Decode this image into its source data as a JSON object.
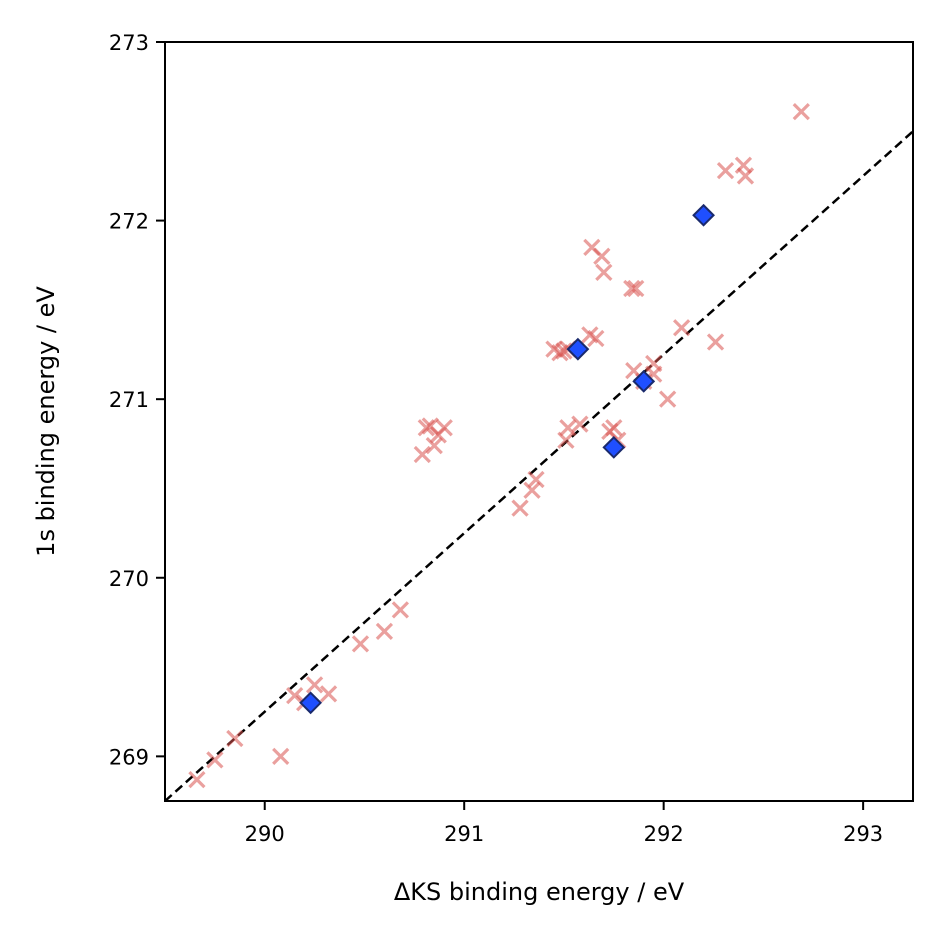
{
  "chart_data": {
    "type": "scatter",
    "xlabel": "ΔKS binding energy / eV",
    "ylabel": "1s binding energy / eV",
    "xlim": [
      289.5,
      293.25
    ],
    "ylim": [
      268.75,
      273.0
    ],
    "xticks": [
      290,
      291,
      292,
      293
    ],
    "xtick_labels": [
      "290",
      "291",
      "292",
      "293"
    ],
    "yticks": [
      269,
      270,
      271,
      272,
      273
    ],
    "ytick_labels": [
      "269",
      "270",
      "271",
      "272",
      "273"
    ],
    "grid": false,
    "legend": "none",
    "reference_line": {
      "style": "dashed",
      "color": "#000000",
      "description": "y = x - 20.75"
    },
    "series": [
      {
        "marker": "x",
        "color": "#d9534f",
        "opacity": 0.55,
        "points": [
          [
            289.66,
            268.87
          ],
          [
            289.75,
            268.98
          ],
          [
            289.85,
            269.1
          ],
          [
            290.08,
            269.0
          ],
          [
            290.15,
            269.34
          ],
          [
            290.2,
            269.3
          ],
          [
            290.25,
            269.4
          ],
          [
            290.32,
            269.35
          ],
          [
            290.48,
            269.63
          ],
          [
            290.6,
            269.7
          ],
          [
            290.68,
            269.82
          ],
          [
            290.79,
            270.69
          ],
          [
            290.81,
            270.84
          ],
          [
            290.83,
            270.85
          ],
          [
            290.85,
            270.74
          ],
          [
            290.87,
            270.8
          ],
          [
            290.9,
            270.84
          ],
          [
            291.28,
            270.39
          ],
          [
            291.34,
            270.49
          ],
          [
            291.36,
            270.55
          ],
          [
            291.45,
            271.28
          ],
          [
            291.48,
            271.26
          ],
          [
            291.5,
            271.27
          ],
          [
            291.52,
            271.28
          ],
          [
            291.51,
            270.77
          ],
          [
            291.52,
            270.84
          ],
          [
            291.58,
            270.86
          ],
          [
            291.63,
            271.36
          ],
          [
            291.66,
            271.34
          ],
          [
            291.64,
            271.85
          ],
          [
            291.69,
            271.8
          ],
          [
            291.7,
            271.71
          ],
          [
            291.73,
            270.82
          ],
          [
            291.75,
            270.84
          ],
          [
            291.77,
            270.77
          ],
          [
            291.84,
            271.62
          ],
          [
            291.86,
            271.62
          ],
          [
            291.85,
            271.16
          ],
          [
            291.9,
            271.1
          ],
          [
            291.95,
            271.2
          ],
          [
            291.95,
            271.14
          ],
          [
            292.02,
            271.0
          ],
          [
            292.09,
            271.4
          ],
          [
            292.26,
            271.32
          ],
          [
            292.31,
            272.28
          ],
          [
            292.4,
            272.31
          ],
          [
            292.41,
            272.25
          ],
          [
            292.69,
            272.61
          ]
        ]
      },
      {
        "marker": "diamond",
        "color": "#1f4fff",
        "edgecolor": "#1a2a6c",
        "opacity": 1,
        "points": [
          [
            290.23,
            269.3
          ],
          [
            291.57,
            271.28
          ],
          [
            291.75,
            270.73
          ],
          [
            291.9,
            271.1
          ],
          [
            292.2,
            272.03
          ]
        ]
      }
    ]
  }
}
